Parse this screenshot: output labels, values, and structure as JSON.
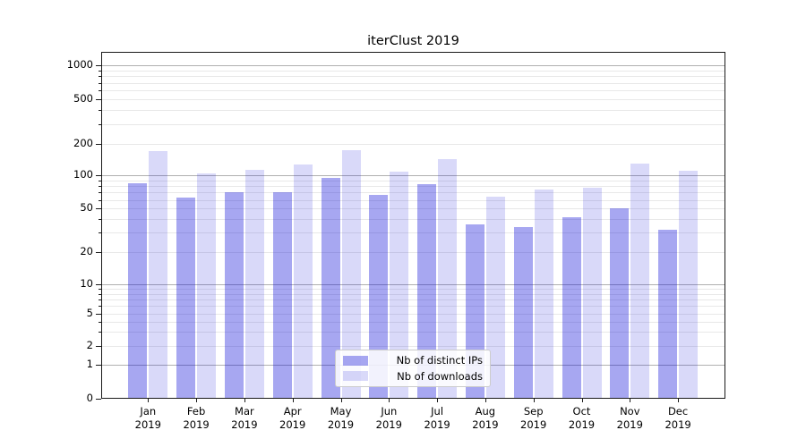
{
  "chart_data": {
    "type": "bar",
    "title": "iterClust 2019",
    "months": [
      "Jan",
      "Feb",
      "Mar",
      "Apr",
      "May",
      "Jun",
      "Jul",
      "Aug",
      "Sep",
      "Oct",
      "Nov",
      "Dec"
    ],
    "year_label": "2019",
    "series": [
      {
        "name": "Nb of distinct IPs",
        "color": "rgba(10,10,215,0.36)",
        "values": [
          85,
          63,
          70,
          70,
          95,
          66,
          84,
          36,
          34,
          42,
          50,
          32
        ]
      },
      {
        "name": "Nb of downloads",
        "color": "rgba(10,10,215,0.155)",
        "values": [
          170,
          104,
          114,
          126,
          174,
          108,
          144,
          64,
          74,
          77,
          130,
          110
        ]
      }
    ],
    "y_axis": {
      "scale": "symlog",
      "tick_values": [
        0,
        1,
        2,
        5,
        10,
        20,
        50,
        100,
        200,
        500,
        1000
      ],
      "tick_labels": [
        "0",
        "1",
        "2",
        "5",
        "10",
        "20",
        "50",
        "100",
        "200",
        "500",
        "1000"
      ],
      "major_gridline_values": [
        1,
        10,
        100,
        1000
      ],
      "ylim_top": 1300
    },
    "legend": {
      "position": "lower center",
      "entries": [
        "Nb of distinct IPs",
        "Nb of downloads"
      ]
    },
    "grid": true,
    "colors": {
      "major_grid": "#b0b0b0",
      "minor_grid": "#e8e8e8",
      "spine": "#1a1a1a",
      "background": "#ffffff"
    }
  }
}
